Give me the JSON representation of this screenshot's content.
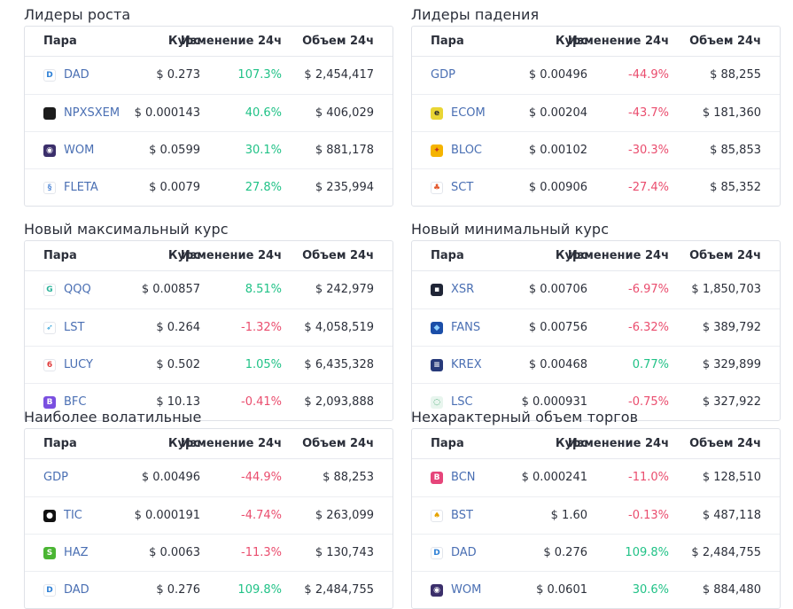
{
  "columns": {
    "pair": "Пара",
    "price": "Курс",
    "change": "Изменение 24ч",
    "volume": "Объем 24ч"
  },
  "sections": [
    {
      "title": "Лидеры роста",
      "rows": [
        {
          "pair": "DAD",
          "icon": "dad-icon",
          "price": "$ 0.273",
          "change": "107.3%",
          "dir": "pos",
          "volume": "$ 2,454,417"
        },
        {
          "pair": "NPXSXEM",
          "icon": "npxsxem-icon",
          "price": "$ 0.000143",
          "change": "40.6%",
          "dir": "pos",
          "volume": "$ 406,029"
        },
        {
          "pair": "WOM",
          "icon": "wom-icon",
          "price": "$ 0.0599",
          "change": "30.1%",
          "dir": "pos",
          "volume": "$ 881,178"
        },
        {
          "pair": "FLETA",
          "icon": "fleta-icon",
          "price": "$ 0.0079",
          "change": "27.8%",
          "dir": "pos",
          "volume": "$ 235,994"
        }
      ]
    },
    {
      "title": "Лидеры падения",
      "rows": [
        {
          "pair": "GDP",
          "icon": "",
          "price": "$ 0.00496",
          "change": "-44.9%",
          "dir": "neg",
          "volume": "$ 88,255"
        },
        {
          "pair": "ECOM",
          "icon": "ecom-icon",
          "price": "$ 0.00204",
          "change": "-43.7%",
          "dir": "neg",
          "volume": "$ 181,360"
        },
        {
          "pair": "BLOC",
          "icon": "bloc-icon",
          "price": "$ 0.00102",
          "change": "-30.3%",
          "dir": "neg",
          "volume": "$ 85,853"
        },
        {
          "pair": "SCT",
          "icon": "sct-icon",
          "price": "$ 0.00906",
          "change": "-27.4%",
          "dir": "neg",
          "volume": "$ 85,352"
        }
      ]
    },
    {
      "title": "Новый максимальный курс",
      "rows": [
        {
          "pair": "QQQ",
          "icon": "qqq-icon",
          "price": "$ 0.00857",
          "change": "8.51%",
          "dir": "pos",
          "volume": "$ 242,979"
        },
        {
          "pair": "LST",
          "icon": "lst-icon",
          "price": "$ 0.264",
          "change": "-1.32%",
          "dir": "neg",
          "volume": "$ 4,058,519"
        },
        {
          "pair": "LUCY",
          "icon": "lucy-icon",
          "price": "$ 0.502",
          "change": "1.05%",
          "dir": "pos",
          "volume": "$ 6,435,328"
        },
        {
          "pair": "BFC",
          "icon": "bfc-icon",
          "price": "$ 10.13",
          "change": "-0.41%",
          "dir": "neg",
          "volume": "$ 2,093,888"
        }
      ]
    },
    {
      "title": "Новый минимальный курс",
      "rows": [
        {
          "pair": "XSR",
          "icon": "xsr-icon",
          "price": "$ 0.00706",
          "change": "-6.97%",
          "dir": "neg",
          "volume": "$ 1,850,703"
        },
        {
          "pair": "FANS",
          "icon": "fans-icon",
          "price": "$ 0.00756",
          "change": "-6.32%",
          "dir": "neg",
          "volume": "$ 389,792"
        },
        {
          "pair": "KREX",
          "icon": "krex-icon",
          "price": "$ 0.00468",
          "change": "0.77%",
          "dir": "pos",
          "volume": "$ 329,899"
        },
        {
          "pair": "LSC",
          "icon": "lsc-icon",
          "price": "$ 0.000931",
          "change": "-0.75%",
          "dir": "neg",
          "volume": "$ 327,922"
        }
      ]
    },
    {
      "title": "Наиболее волатильные",
      "rows": [
        {
          "pair": "GDP",
          "icon": "",
          "price": "$ 0.00496",
          "change": "-44.9%",
          "dir": "neg",
          "volume": "$ 88,253"
        },
        {
          "pair": "TIC",
          "icon": "tic-icon",
          "price": "$ 0.000191",
          "change": "-4.74%",
          "dir": "neg",
          "volume": "$ 263,099"
        },
        {
          "pair": "HAZ",
          "icon": "haz-icon",
          "price": "$ 0.0063",
          "change": "-11.3%",
          "dir": "neg",
          "volume": "$ 130,743"
        },
        {
          "pair": "DAD",
          "icon": "dad-icon",
          "price": "$ 0.276",
          "change": "109.8%",
          "dir": "pos",
          "volume": "$ 2,484,755"
        }
      ]
    },
    {
      "title": "Нехарактерный объем торгов",
      "rows": [
        {
          "pair": "BCN",
          "icon": "bcn-icon",
          "price": "$ 0.000241",
          "change": "-11.0%",
          "dir": "neg",
          "volume": "$ 128,510"
        },
        {
          "pair": "BST",
          "icon": "bst-icon",
          "price": "$ 1.60",
          "change": "-0.13%",
          "dir": "neg",
          "volume": "$ 487,118"
        },
        {
          "pair": "DAD",
          "icon": "dad-icon",
          "price": "$ 0.276",
          "change": "109.8%",
          "dir": "pos",
          "volume": "$ 2,484,755"
        },
        {
          "pair": "WOM",
          "icon": "wom-icon",
          "price": "$ 0.0601",
          "change": "30.6%",
          "dir": "pos",
          "volume": "$ 884,480"
        }
      ]
    }
  ],
  "icon_styles": {
    "dad-icon": {
      "bg": "#ffffff",
      "fg": "#2d7fd6",
      "glyph": "D"
    },
    "npxsxem-icon": {
      "bg": "#1c1c1c",
      "fg": "#ffffff",
      "glyph": ""
    },
    "wom-icon": {
      "bg": "#3b2f6b",
      "fg": "#ffffff",
      "glyph": "◉"
    },
    "fleta-icon": {
      "bg": "#ffffff",
      "fg": "#5b8fd8",
      "glyph": "§"
    },
    "ecom-icon": {
      "bg": "#e9d534",
      "fg": "#2a2a2a",
      "glyph": "e"
    },
    "bloc-icon": {
      "bg": "#f5b400",
      "fg": "#c5361e",
      "glyph": "✦"
    },
    "sct-icon": {
      "bg": "#ffffff",
      "fg": "#e2572c",
      "glyph": "♣"
    },
    "qqq-icon": {
      "bg": "#ffffff",
      "fg": "#2bb39a",
      "glyph": "G"
    },
    "lst-icon": {
      "bg": "#ffffff",
      "fg": "#1e9ad6",
      "glyph": "➶"
    },
    "lucy-icon": {
      "bg": "#ffffff",
      "fg": "#e03a3a",
      "glyph": "6"
    },
    "bfc-icon": {
      "bg": "#7a4fe0",
      "fg": "#ffffff",
      "glyph": "B"
    },
    "xsr-icon": {
      "bg": "#1f2536",
      "fg": "#ffffff",
      "glyph": "▪"
    },
    "fans-icon": {
      "bg": "#1b4ea8",
      "fg": "#8fd0ff",
      "glyph": "◆"
    },
    "krex-icon": {
      "bg": "#273a7a",
      "fg": "#ffffff",
      "glyph": "≡"
    },
    "lsc-icon": {
      "bg": "#e8f5ee",
      "fg": "#2a9c5c",
      "glyph": "◌"
    },
    "tic-icon": {
      "bg": "#111111",
      "fg": "#ffffff",
      "glyph": "●"
    },
    "haz-icon": {
      "bg": "#4ab533",
      "fg": "#ffffff",
      "glyph": "S"
    },
    "bcn-icon": {
      "bg": "#e6457a",
      "fg": "#ffffff",
      "glyph": "B"
    },
    "bst-icon": {
      "bg": "#ffffff",
      "fg": "#e5a300",
      "glyph": "♠"
    }
  }
}
